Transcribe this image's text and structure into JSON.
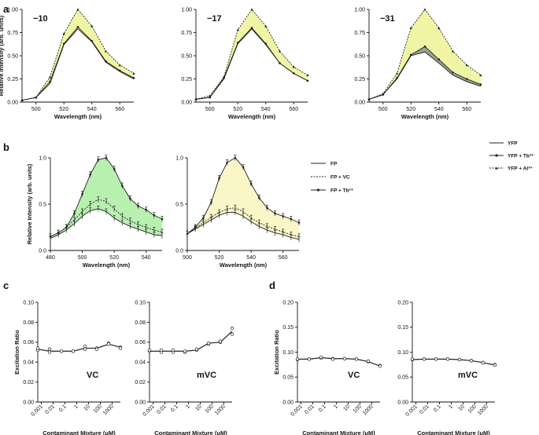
{
  "panel_letters": [
    "a",
    "b",
    "c",
    "d"
  ],
  "legends": {
    "a": [
      "YFP",
      "YFP + Tb³⁺",
      "YFP + Al³⁺"
    ],
    "b": [
      "FP",
      "FP + VC",
      "FP + Tb³⁺"
    ]
  },
  "colors": {
    "yellow_fill": "#f0f5a6",
    "green_fill": "#b8f0b0",
    "cream_fill": "#faf6c8",
    "gray_fill": "#8f8f8f",
    "line": "#222222"
  },
  "chart_data": [
    {
      "id": "a1",
      "type": "line",
      "inset_label": "−10",
      "xlabel": "Wavelength (nm)",
      "ylabel": "Relative Intensity (arb. units)",
      "xlim": [
        490,
        570
      ],
      "ylim": [
        0,
        1.0
      ],
      "xticks": [
        500,
        520,
        540,
        560
      ],
      "yticks": [
        0,
        0.25,
        0.5,
        0.75,
        1.0
      ],
      "ytick_labels": [
        "0.00",
        "0.25",
        "0.50",
        "0.75",
        "1.00"
      ],
      "x": [
        490,
        500,
        510,
        520,
        530,
        540,
        550,
        560,
        570
      ],
      "series": [
        {
          "name": "YFP",
          "values": [
            0.02,
            0.05,
            0.2,
            0.62,
            0.79,
            0.65,
            0.43,
            0.33,
            0.25
          ]
        },
        {
          "name": "YFP + Tb³⁺",
          "values": [
            0.02,
            0.05,
            0.22,
            0.63,
            0.81,
            0.66,
            0.44,
            0.34,
            0.26
          ]
        },
        {
          "name": "YFP + Al³⁺",
          "values": [
            0.02,
            0.05,
            0.27,
            0.74,
            1.0,
            0.82,
            0.55,
            0.4,
            0.31
          ]
        }
      ]
    },
    {
      "id": "a2",
      "type": "line",
      "inset_label": "−17",
      "xlabel": "Wavelength (nm)",
      "ylabel": "",
      "xlim": [
        490,
        570
      ],
      "ylim": [
        0,
        1.0
      ],
      "xticks": [
        500,
        520,
        540,
        560
      ],
      "yticks": [
        0,
        0.25,
        0.5,
        0.75,
        1.0
      ],
      "ytick_labels": [
        "0.00",
        "0.25",
        "0.50",
        "0.75",
        "1.00"
      ],
      "x": [
        490,
        500,
        510,
        520,
        530,
        540,
        550,
        560,
        570
      ],
      "series": [
        {
          "name": "YFP",
          "values": [
            0.03,
            0.05,
            0.25,
            0.63,
            0.79,
            0.62,
            0.42,
            0.31,
            0.23
          ]
        },
        {
          "name": "YFP + Tb³⁺",
          "values": [
            0.03,
            0.05,
            0.26,
            0.64,
            0.8,
            0.63,
            0.42,
            0.31,
            0.23
          ]
        },
        {
          "name": "YFP + Al³⁺",
          "values": [
            0.03,
            0.07,
            0.27,
            0.78,
            1.0,
            0.82,
            0.55,
            0.38,
            0.29
          ]
        }
      ]
    },
    {
      "id": "a3",
      "type": "line",
      "inset_label": "−31",
      "xlabel": "Wavelength (nm)",
      "ylabel": "",
      "xlim": [
        490,
        570
      ],
      "ylim": [
        0,
        1.0
      ],
      "xticks": [
        500,
        520,
        540,
        560
      ],
      "yticks": [
        0,
        0.25,
        0.5,
        0.75,
        1.0
      ],
      "ytick_labels": [
        "0.00",
        "0.25",
        "0.50",
        "0.75",
        "1.00"
      ],
      "x": [
        490,
        500,
        510,
        520,
        530,
        540,
        550,
        560,
        570
      ],
      "series": [
        {
          "name": "YFP",
          "values": [
            0.03,
            0.08,
            0.25,
            0.5,
            0.54,
            0.42,
            0.29,
            0.22,
            0.17
          ]
        },
        {
          "name": "YFP + Tb³⁺",
          "values": [
            0.03,
            0.08,
            0.26,
            0.51,
            0.6,
            0.46,
            0.32,
            0.25,
            0.19
          ]
        },
        {
          "name": "YFP + Al³⁺",
          "values": [
            0.03,
            0.09,
            0.31,
            0.8,
            1.0,
            0.8,
            0.55,
            0.4,
            0.29
          ]
        }
      ]
    },
    {
      "id": "b1",
      "type": "line",
      "xlabel": "Wavelength (nm)",
      "ylabel": "Relative Intensity (arb. units)",
      "xlim": [
        480,
        550
      ],
      "ylim": [
        0,
        1.0
      ],
      "xticks": [
        480,
        500,
        520,
        540
      ],
      "yticks": [
        0,
        0.5,
        1.0
      ],
      "ytick_labels": [
        "0.0",
        "0.5",
        "1.0"
      ],
      "x": [
        480,
        485,
        490,
        495,
        500,
        505,
        510,
        515,
        520,
        525,
        530,
        535,
        540,
        545,
        550
      ],
      "series": [
        {
          "name": "FP",
          "values": [
            0.13,
            0.17,
            0.22,
            0.29,
            0.37,
            0.43,
            0.45,
            0.42,
            0.35,
            0.3,
            0.26,
            0.23,
            0.2,
            0.17,
            0.16
          ]
        },
        {
          "name": "FP + VC",
          "values": [
            0.15,
            0.19,
            0.25,
            0.33,
            0.42,
            0.5,
            0.55,
            0.53,
            0.45,
            0.37,
            0.32,
            0.28,
            0.25,
            0.22,
            0.2
          ]
        },
        {
          "name": "FP + Tb³⁺",
          "values": [
            0.15,
            0.19,
            0.25,
            0.4,
            0.61,
            0.82,
            0.98,
            1.0,
            0.88,
            0.7,
            0.56,
            0.48,
            0.44,
            0.38,
            0.34
          ]
        }
      ]
    },
    {
      "id": "b2",
      "type": "line",
      "xlabel": "Wavelength (nm)",
      "ylabel": "",
      "xlim": [
        500,
        570
      ],
      "ylim": [
        0,
        1.0
      ],
      "xticks": [
        500,
        520,
        540,
        560
      ],
      "yticks": [
        0,
        0.5,
        1.0
      ],
      "ytick_labels": [
        "0.0",
        "0.5",
        "1.0"
      ],
      "x": [
        500,
        505,
        510,
        515,
        520,
        525,
        530,
        535,
        540,
        545,
        550,
        555,
        560,
        565,
        570
      ],
      "series": [
        {
          "name": "FP",
          "values": [
            0.18,
            0.23,
            0.28,
            0.33,
            0.38,
            0.41,
            0.41,
            0.37,
            0.31,
            0.26,
            0.22,
            0.19,
            0.17,
            0.14,
            0.12
          ]
        },
        {
          "name": "FP + VC",
          "values": [
            0.18,
            0.24,
            0.3,
            0.36,
            0.41,
            0.45,
            0.46,
            0.42,
            0.35,
            0.3,
            0.26,
            0.23,
            0.2,
            0.17,
            0.15
          ]
        },
        {
          "name": "FP + Tb³⁺",
          "values": [
            0.18,
            0.25,
            0.35,
            0.52,
            0.78,
            0.95,
            1.0,
            0.9,
            0.72,
            0.57,
            0.46,
            0.4,
            0.37,
            0.34,
            0.3
          ]
        }
      ]
    },
    {
      "id": "c1",
      "type": "scatter",
      "inset_label": "VC",
      "xlabel": "Contaminant Mixture (μM)",
      "ylabel": "Excitation Ratio",
      "xscale": "log",
      "xlim": [
        0.0005,
        5000
      ],
      "ylim": [
        0,
        0.1
      ],
      "xticks": [
        0.001,
        0.01,
        0.1,
        1,
        10,
        100,
        1000
      ],
      "xtick_labels": [
        "0.001",
        "0.01",
        "0.1",
        "1",
        "10",
        "100",
        "1000"
      ],
      "yticks": [
        0,
        0.02,
        0.04,
        0.06,
        0.08,
        0.1
      ],
      "ytick_labels": [
        "0.00",
        "0.02",
        "0.04",
        "0.06",
        "0.08",
        "0.10"
      ],
      "x": [
        0.0005,
        0.005,
        0.05,
        0.5,
        5,
        50,
        500,
        5000
      ],
      "points": [
        [
          0.052,
          0.054
        ],
        [
          0.05,
          0.053
        ],
        [
          0.051,
          0.051
        ],
        [
          0.051,
          0.051
        ],
        [
          0.053,
          0.056
        ],
        [
          0.054,
          0.053
        ],
        [
          0.059,
          0.058
        ],
        [
          0.055,
          0.054
        ]
      ],
      "mean": [
        0.053,
        0.051,
        0.051,
        0.051,
        0.054,
        0.054,
        0.058,
        0.055
      ]
    },
    {
      "id": "c2",
      "type": "scatter",
      "inset_label": "mVC",
      "xlabel": "Contaminant Mixture (μM)",
      "ylabel": "",
      "xscale": "log",
      "xlim": [
        0.0005,
        5000
      ],
      "ylim": [
        0,
        0.1
      ],
      "xticks": [
        0.001,
        0.01,
        0.1,
        1,
        10,
        100,
        1000
      ],
      "xtick_labels": [
        "0.001",
        "0.01",
        "0.1",
        "1",
        "10",
        "100",
        "1000"
      ],
      "yticks": [
        0,
        0.02,
        0.04,
        0.06,
        0.08,
        0.1
      ],
      "ytick_labels": [
        "0.00",
        "0.02",
        "0.04",
        "0.06",
        "0.08",
        "0.10"
      ],
      "x": [
        0.0005,
        0.005,
        0.05,
        0.5,
        5,
        50,
        500,
        5000
      ],
      "points": [
        [
          0.051,
          0.052
        ],
        [
          0.05,
          0.052
        ],
        [
          0.05,
          0.052
        ],
        [
          0.05,
          0.051
        ],
        [
          0.052,
          0.053
        ],
        [
          0.058,
          0.059
        ],
        [
          0.06,
          0.061
        ],
        [
          0.068,
          0.074
        ]
      ],
      "mean": [
        0.051,
        0.051,
        0.051,
        0.051,
        0.052,
        0.059,
        0.06,
        0.071
      ]
    },
    {
      "id": "d1",
      "type": "scatter",
      "inset_label": "VC",
      "xlabel": "Contaminant Mixture (μM)",
      "ylabel": "Excitation Ratio",
      "xscale": "log",
      "xlim": [
        0.0005,
        5000
      ],
      "ylim": [
        0,
        0.2
      ],
      "xticks": [
        0.001,
        0.01,
        0.1,
        1,
        10,
        100,
        1000
      ],
      "xtick_labels": [
        "0.001",
        "0.01",
        "0.1",
        "1",
        "10",
        "100",
        "1000"
      ],
      "yticks": [
        0,
        0.05,
        0.1,
        0.15,
        0.2
      ],
      "ytick_labels": [
        "0.00",
        "0.05",
        "0.10",
        "0.15",
        "0.20"
      ],
      "x": [
        0.0005,
        0.005,
        0.05,
        0.5,
        5,
        50,
        500,
        5000
      ],
      "points": [
        [
          0.085,
          0.086
        ],
        [
          0.086,
          0.086
        ],
        [
          0.088,
          0.09
        ],
        [
          0.087,
          0.086
        ],
        [
          0.087,
          0.087
        ],
        [
          0.086,
          0.086
        ],
        [
          0.081,
          0.082
        ],
        [
          0.073,
          0.072
        ]
      ],
      "mean": [
        0.086,
        0.086,
        0.089,
        0.087,
        0.087,
        0.086,
        0.081,
        0.072
      ]
    },
    {
      "id": "d2",
      "type": "scatter",
      "inset_label": "mVC",
      "xlabel": "Contaminant Mixture (μM)",
      "ylabel": "",
      "xscale": "log",
      "xlim": [
        0.0005,
        5000
      ],
      "ylim": [
        0,
        0.2
      ],
      "xticks": [
        0.001,
        0.01,
        0.1,
        1,
        10,
        100,
        1000
      ],
      "xtick_labels": [
        "0.001",
        "0.01",
        "0.1",
        "1",
        "10",
        "100",
        "1000"
      ],
      "yticks": [
        0,
        0.05,
        0.1,
        0.15,
        0.2
      ],
      "ytick_labels": [
        "0.00",
        "0.05",
        "0.10",
        "0.15",
        "0.20"
      ],
      "x": [
        0.0005,
        0.005,
        0.05,
        0.5,
        5,
        50,
        500,
        5000
      ],
      "points": [
        [
          0.085,
          0.086
        ],
        [
          0.086,
          0.086
        ],
        [
          0.086,
          0.086
        ],
        [
          0.086,
          0.086
        ],
        [
          0.085,
          0.085
        ],
        [
          0.083,
          0.083
        ],
        [
          0.079,
          0.079
        ],
        [
          0.075,
          0.074
        ]
      ],
      "mean": [
        0.085,
        0.086,
        0.086,
        0.086,
        0.085,
        0.083,
        0.079,
        0.074
      ]
    }
  ]
}
